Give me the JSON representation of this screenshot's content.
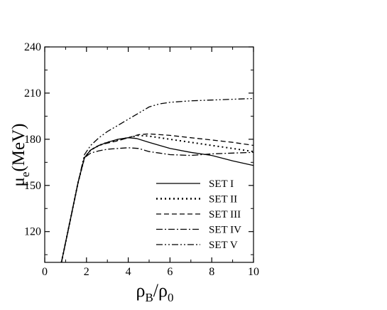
{
  "chart_data": {
    "type": "line",
    "title": "",
    "xlim": [
      0,
      10
    ],
    "ylim": [
      100,
      240
    ],
    "x_ticks": [
      0,
      2,
      4,
      6,
      8,
      10
    ],
    "x_tick_labels": [
      "0",
      "2",
      "4",
      "6",
      "8",
      "10"
    ],
    "y_ticks": [
      120,
      150,
      180,
      210,
      240
    ],
    "y_tick_labels": [
      "120",
      "150",
      "180",
      "210",
      "240"
    ],
    "xlabel": {
      "rho": "ρ",
      "sub1": "B",
      "slash": "/",
      "rho2": "ρ",
      "sub2": "0"
    },
    "ylabel": {
      "mu": "μ",
      "sub": "e",
      "rest": "(MeV)"
    },
    "grid": false,
    "legend_position": "lower-right",
    "series": [
      {
        "name": "SET I",
        "dash": "solid",
        "x": [
          0.8,
          1.2,
          1.6,
          1.9,
          2.2,
          2.6,
          3.0,
          3.5,
          4.0,
          4.4,
          5.0,
          5.5,
          6.0,
          7.0,
          8.0,
          9.0,
          10.0
        ],
        "y": [
          100,
          126,
          152,
          168,
          173,
          176,
          178,
          180,
          181,
          180.5,
          178,
          176,
          174,
          171.5,
          169.5,
          166,
          163
        ]
      },
      {
        "name": "SET II",
        "dash": "dotted",
        "x": [
          0.8,
          1.2,
          1.6,
          1.9,
          2.2,
          2.6,
          3.0,
          3.5,
          4.0,
          4.5,
          5.0,
          6.0,
          7.0,
          8.0,
          9.0,
          10.0
        ],
        "y": [
          100,
          126,
          152,
          168,
          173,
          176,
          178,
          179.5,
          181,
          182.5,
          182,
          180,
          178,
          176,
          174,
          172
        ]
      },
      {
        "name": "SET III",
        "dash": "dashed",
        "x": [
          0.8,
          1.2,
          1.6,
          1.9,
          2.2,
          2.6,
          3.0,
          3.5,
          4.0,
          4.5,
          5.0,
          6.0,
          7.0,
          8.0,
          9.0,
          10.0
        ],
        "y": [
          100,
          126,
          152,
          168,
          173,
          176,
          177.5,
          179,
          181,
          183,
          183.5,
          182.5,
          181,
          179.5,
          178,
          176
        ]
      },
      {
        "name": "SET IV",
        "dash": "dashdot",
        "x": [
          0.8,
          1.2,
          1.6,
          1.9,
          2.2,
          2.6,
          3.0,
          3.5,
          4.0,
          4.5,
          5.0,
          5.5,
          6.0,
          7.0,
          8.0,
          9.0,
          10.0
        ],
        "y": [
          100,
          126,
          152,
          168,
          171,
          172.5,
          173.5,
          174,
          174.5,
          174,
          172,
          171,
          170,
          169.5,
          170.5,
          171,
          171.5
        ]
      },
      {
        "name": "SET V",
        "dash": "dashdotdot",
        "x": [
          0.8,
          1.2,
          1.6,
          1.9,
          2.2,
          2.6,
          3.0,
          3.5,
          4.0,
          4.5,
          5.0,
          5.5,
          6.0,
          7.0,
          8.0,
          9.0,
          10.0
        ],
        "y": [
          100,
          126,
          152,
          170,
          176,
          181,
          185,
          189,
          193,
          197,
          201,
          203,
          204,
          205,
          205.5,
          206,
          206.5
        ]
      }
    ]
  }
}
